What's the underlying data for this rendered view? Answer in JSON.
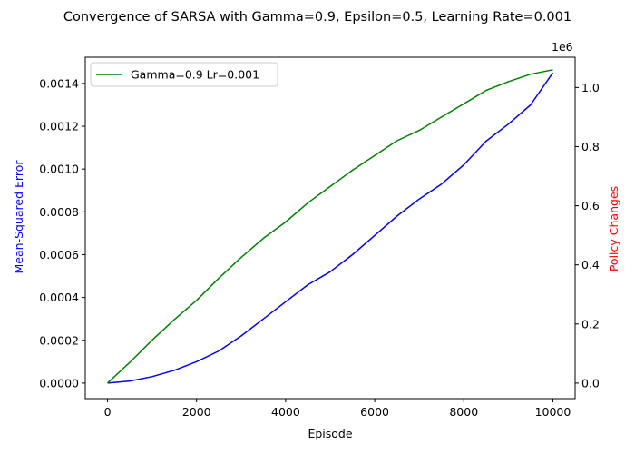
{
  "chart_data": {
    "type": "line",
    "title": "Convergence of SARSA with Gamma=0.9, Epsilon=0.5, Learning Rate=0.001",
    "xlabel": "Episode",
    "ylabel_left": "Mean-Squared Error",
    "ylabel_right": "Policy Changes",
    "right_axis_multiplier": "1e6",
    "xlim": [
      -500,
      10500
    ],
    "ylim_left": [
      -7.25e-05,
      0.0015225
    ],
    "ylim_right": [
      -52500,
      1102500
    ],
    "x_ticks": [
      0,
      2000,
      4000,
      6000,
      8000,
      10000
    ],
    "x_tick_labels": [
      "0",
      "2000",
      "4000",
      "6000",
      "8000",
      "10000"
    ],
    "left_ticks": [
      0,
      0.0002,
      0.0004,
      0.0006,
      0.0008,
      0.001,
      0.0012,
      0.0014
    ],
    "left_tick_labels": [
      "0.0000",
      "0.0002",
      "0.0004",
      "0.0006",
      "0.0008",
      "0.0010",
      "0.0012",
      "0.0014"
    ],
    "right_ticks": [
      0,
      200000,
      400000,
      600000,
      800000,
      1000000
    ],
    "right_tick_labels": [
      "0.0",
      "0.2",
      "0.4",
      "0.6",
      "0.8",
      "1.0"
    ],
    "grid": false,
    "legend_position": "top-left",
    "series": [
      {
        "name": "",
        "axis": "left",
        "color": "#0000ff",
        "x": [
          0,
          500,
          1000,
          1500,
          2000,
          2500,
          3000,
          3500,
          4000,
          4500,
          5000,
          5500,
          6000,
          6500,
          7000,
          7500,
          8000,
          8500,
          9000,
          9500,
          10000
        ],
        "y": [
          0.0,
          1e-05,
          3e-05,
          6e-05,
          0.0001,
          0.00015,
          0.00022,
          0.0003,
          0.00038,
          0.00046,
          0.00052,
          0.0006,
          0.00069,
          0.00078,
          0.00086,
          0.00093,
          0.00102,
          0.00113,
          0.00121,
          0.0013,
          0.00145
        ]
      },
      {
        "name": "Gamma=0.9 Lr=0.001",
        "axis": "right",
        "color": "#008000",
        "x": [
          0,
          500,
          1000,
          1500,
          2000,
          2500,
          3000,
          3500,
          4000,
          4500,
          5000,
          5500,
          6000,
          6500,
          7000,
          7500,
          8000,
          8500,
          9000,
          9500,
          10000
        ],
        "y": [
          0,
          70000,
          145000,
          215000,
          280000,
          355000,
          425000,
          490000,
          545000,
          610000,
          665000,
          720000,
          770000,
          820000,
          855000,
          900000,
          945000,
          990000,
          1020000,
          1045000,
          1060000
        ]
      }
    ]
  }
}
